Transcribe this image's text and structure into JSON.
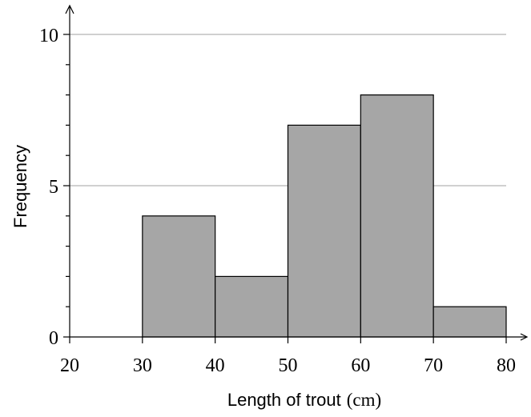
{
  "chart_data": {
    "type": "bar",
    "histogram": true,
    "bins": [
      {
        "start": 30,
        "end": 40,
        "value": 4
      },
      {
        "start": 40,
        "end": 50,
        "value": 2
      },
      {
        "start": 50,
        "end": 60,
        "value": 7
      },
      {
        "start": 60,
        "end": 70,
        "value": 8
      },
      {
        "start": 70,
        "end": 80,
        "value": 1
      }
    ],
    "xlabel": "Length of trout",
    "xlabel_unit": "(cm)",
    "ylabel": "Frequency",
    "xlim": [
      20,
      80
    ],
    "ylim": [
      0,
      10
    ],
    "x_ticks": [
      "20",
      "30",
      "40",
      "50",
      "60",
      "70",
      "80"
    ],
    "y_ticks": [
      "0",
      "5",
      "10"
    ],
    "y_minor_step": 1,
    "grid": "horizontal at major y ticks",
    "legend": "none",
    "colors": {
      "bar_fill": "#a6a6a6",
      "bar_stroke": "#000000",
      "grid": "#b3b3b3"
    }
  }
}
